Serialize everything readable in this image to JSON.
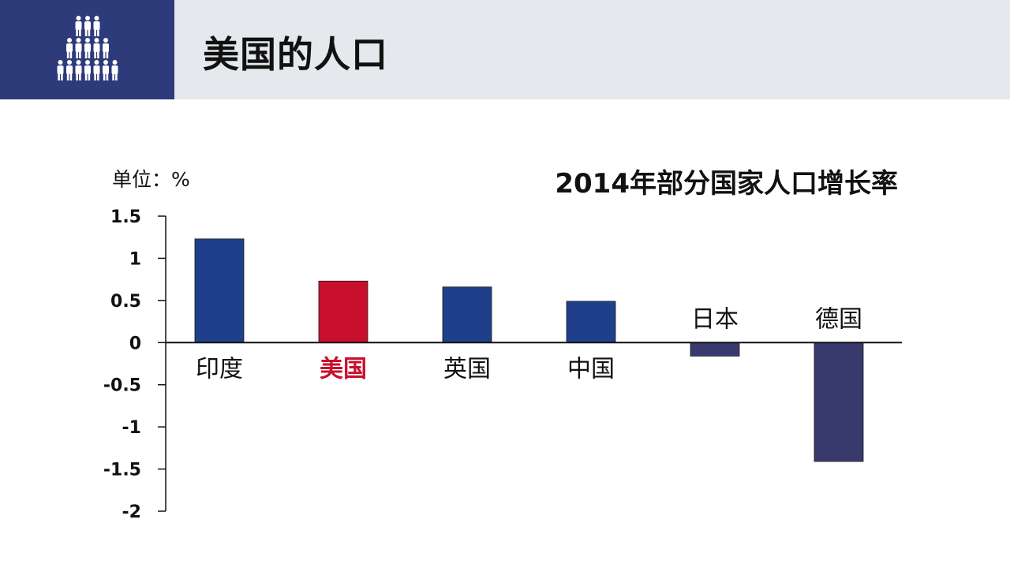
{
  "slide": {
    "title": "美国的人口"
  },
  "icon": "people-pyramid-icon",
  "colors": {
    "header_bg": "#e5e8ec",
    "logo_bg": "#2e3b7a",
    "bar_default": "#1f3f8a",
    "bar_highlight": "#c8102e",
    "bar_negative": "#383a6e",
    "label_highlight": "#c8102e"
  },
  "chart_data": {
    "type": "bar",
    "title": "2014年部分国家人口增长率",
    "unit_label": "单位：%",
    "categories": [
      "印度",
      "美国",
      "英国",
      "中国",
      "日本",
      "德国"
    ],
    "values": [
      1.23,
      0.73,
      0.66,
      0.49,
      -0.16,
      -1.41
    ],
    "highlight": "美国",
    "ylim": [
      -2,
      1.5
    ],
    "yticks": [
      1.5,
      1,
      0.5,
      0,
      -0.5,
      -1,
      -1.5,
      -2
    ],
    "ytick_labels": [
      "1.5",
      "1",
      "0.5",
      "0",
      "-0.5",
      "-1",
      "-1.5",
      "-2"
    ],
    "legend": "none",
    "grid": false
  }
}
